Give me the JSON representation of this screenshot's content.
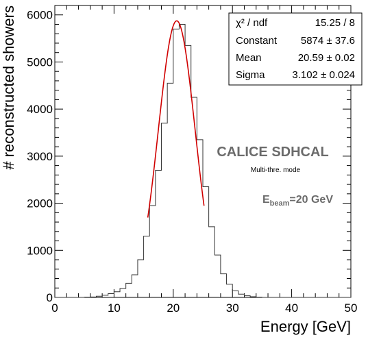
{
  "chart_data": {
    "type": "bar",
    "xlabel": "Energy [GeV]",
    "ylabel": "# reconstructed showers",
    "xlim": [
      0,
      50
    ],
    "ylim": [
      0,
      6200
    ],
    "x_ticks": [
      "0",
      "10",
      "20",
      "30",
      "40",
      "50"
    ],
    "y_ticks": [
      "0",
      "1000",
      "2000",
      "3000",
      "4000",
      "5000",
      "6000"
    ],
    "bin_width": 1,
    "histogram": {
      "bin_low_edges": [
        0,
        1,
        2,
        3,
        4,
        5,
        6,
        7,
        8,
        9,
        10,
        11,
        12,
        13,
        14,
        15,
        16,
        17,
        18,
        19,
        20,
        21,
        22,
        23,
        24,
        25,
        26,
        27,
        28,
        29,
        30,
        31,
        32,
        33,
        34,
        35,
        36,
        37,
        38,
        39,
        40,
        41,
        42,
        43,
        44,
        45,
        46,
        47,
        48,
        49
      ],
      "values": [
        0,
        0,
        0,
        0,
        0,
        5,
        10,
        25,
        45,
        80,
        120,
        190,
        300,
        480,
        800,
        1300,
        1950,
        2700,
        3700,
        4550,
        5700,
        5800,
        5350,
        4250,
        3350,
        2350,
        1500,
        900,
        500,
        280,
        140,
        70,
        35,
        15,
        5,
        0,
        0,
        0,
        0,
        0,
        0,
        0,
        0,
        0,
        0,
        0,
        0,
        0,
        0,
        0
      ]
    },
    "fit": {
      "function": "gaus",
      "color": "#d00000",
      "x_range": [
        15.7,
        25.2
      ],
      "constant": 5874,
      "mean": 20.59,
      "sigma": 3.102
    },
    "stats_box": [
      {
        "label": "χ² / ndf",
        "value": "15.25 / 8"
      },
      {
        "label": "Constant",
        "value": "5874 ± 37.6"
      },
      {
        "label": "Mean",
        "value": "20.59 ± 0.02"
      },
      {
        "label": "Sigma",
        "value": "3.102 ± 0.024"
      }
    ],
    "annotations": {
      "experiment": "CALICE SDHCAL",
      "mode": "Multi-thre. mode",
      "beam_prefix": "E",
      "beam_sub": "beam",
      "beam_value": "=20 GeV"
    }
  }
}
